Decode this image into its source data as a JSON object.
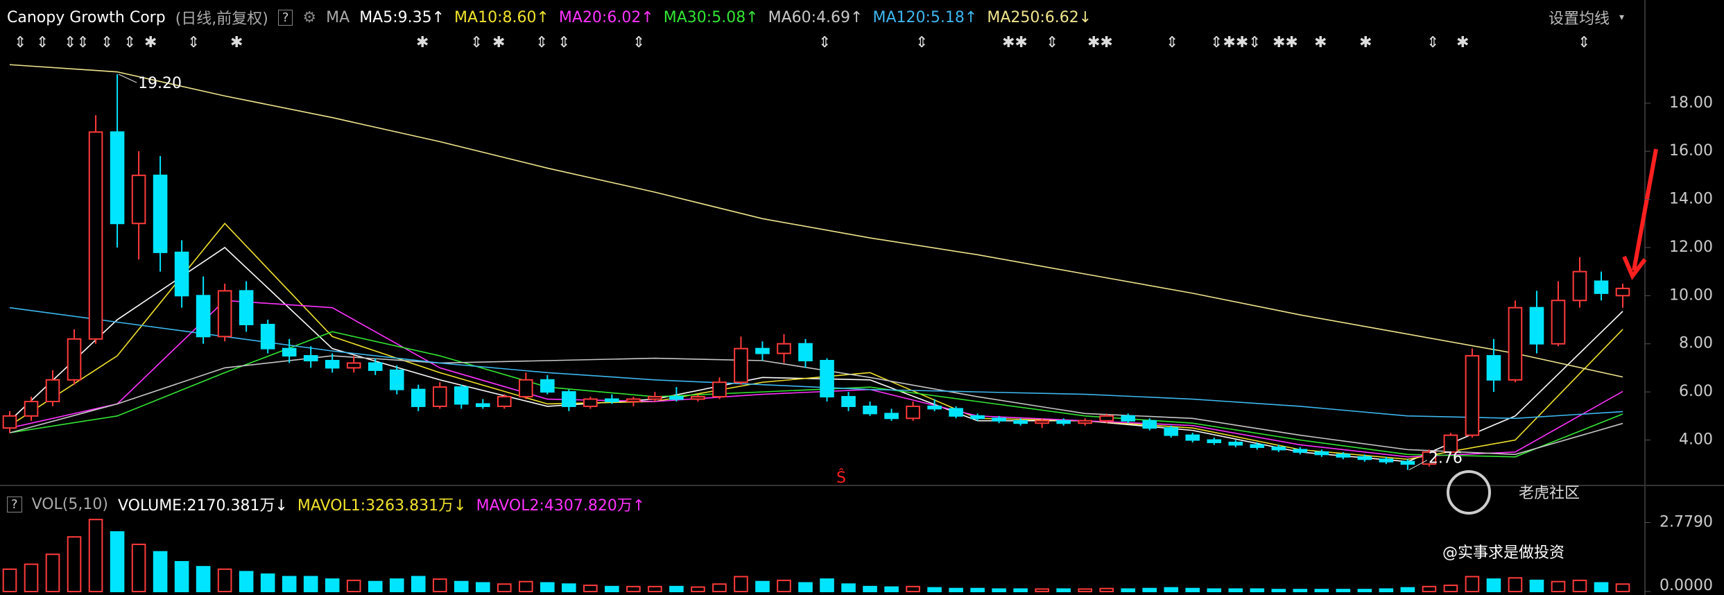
{
  "chart_data": {
    "type": "candlestick",
    "title": "Canopy Growth Corp",
    "subtitle": "(日线,前复权)",
    "help": "?",
    "ma_label": "MA",
    "settings_label": "设置均线",
    "up_color": "#ff3b3b",
    "down_color": "#00e5ff",
    "ylim": [
      2.17,
      19.78
    ],
    "yticks": [
      {
        "value": 4,
        "label": "4.00"
      },
      {
        "value": 6,
        "label": "6.00"
      },
      {
        "value": 8,
        "label": "8.00"
      },
      {
        "value": 10,
        "label": "10.00"
      },
      {
        "value": 12,
        "label": "12.00"
      },
      {
        "value": 14,
        "label": "14.00"
      },
      {
        "value": 16,
        "label": "16.00"
      },
      {
        "value": 18,
        "label": "18.00"
      }
    ],
    "grid": false,
    "candles": [
      [
        4.5,
        5.2,
        4.3,
        5.0
      ],
      [
        5.0,
        5.8,
        4.8,
        5.6
      ],
      [
        5.6,
        6.9,
        5.4,
        6.5
      ],
      [
        6.5,
        8.6,
        6.3,
        8.2
      ],
      [
        8.2,
        17.5,
        8.0,
        16.8
      ],
      [
        16.8,
        19.2,
        12.0,
        13.0
      ],
      [
        13.0,
        16.0,
        11.5,
        15.0
      ],
      [
        15.0,
        15.8,
        11.0,
        11.8
      ],
      [
        11.8,
        12.3,
        9.5,
        10.0
      ],
      [
        10.0,
        10.8,
        8.0,
        8.3
      ],
      [
        8.3,
        10.5,
        8.1,
        10.2
      ],
      [
        10.2,
        10.6,
        8.5,
        8.8
      ],
      [
        8.8,
        9.0,
        7.6,
        7.8
      ],
      [
        7.8,
        8.2,
        7.2,
        7.5
      ],
      [
        7.5,
        7.9,
        7.0,
        7.3
      ],
      [
        7.3,
        7.6,
        6.8,
        7.0
      ],
      [
        7.0,
        7.5,
        6.8,
        7.2
      ],
      [
        7.2,
        7.4,
        6.7,
        6.9
      ],
      [
        6.9,
        7.1,
        5.9,
        6.1
      ],
      [
        6.1,
        6.3,
        5.2,
        5.4
      ],
      [
        5.4,
        6.4,
        5.3,
        6.2
      ],
      [
        6.2,
        6.3,
        5.3,
        5.5
      ],
      [
        5.5,
        5.7,
        5.3,
        5.4
      ],
      [
        5.4,
        5.9,
        5.3,
        5.8
      ],
      [
        5.8,
        6.8,
        5.7,
        6.5
      ],
      [
        6.5,
        6.7,
        5.9,
        6.0
      ],
      [
        6.0,
        6.1,
        5.2,
        5.4
      ],
      [
        5.4,
        5.8,
        5.3,
        5.7
      ],
      [
        5.7,
        5.9,
        5.5,
        5.6
      ],
      [
        5.6,
        5.8,
        5.4,
        5.7
      ],
      [
        5.7,
        6.0,
        5.6,
        5.8
      ],
      [
        5.8,
        6.2,
        5.6,
        5.7
      ],
      [
        5.7,
        5.9,
        5.6,
        5.8
      ],
      [
        5.8,
        6.6,
        5.7,
        6.4
      ],
      [
        6.4,
        8.3,
        6.3,
        7.8
      ],
      [
        7.8,
        8.1,
        7.3,
        7.6
      ],
      [
        7.6,
        8.4,
        7.2,
        8.0
      ],
      [
        8.0,
        8.2,
        7.0,
        7.3
      ],
      [
        7.3,
        7.4,
        5.6,
        5.8
      ],
      [
        5.8,
        6.0,
        5.2,
        5.4
      ],
      [
        5.4,
        5.6,
        5.0,
        5.1
      ],
      [
        5.1,
        5.3,
        4.8,
        4.9
      ],
      [
        4.9,
        5.6,
        4.8,
        5.4
      ],
      [
        5.4,
        5.7,
        5.2,
        5.3
      ],
      [
        5.3,
        5.4,
        4.9,
        5.0
      ],
      [
        5.0,
        5.1,
        4.8,
        4.9
      ],
      [
        4.9,
        5.0,
        4.7,
        4.8
      ],
      [
        4.8,
        4.9,
        4.6,
        4.7
      ],
      [
        4.7,
        4.9,
        4.5,
        4.8
      ],
      [
        4.8,
        4.9,
        4.6,
        4.7
      ],
      [
        4.7,
        4.9,
        4.6,
        4.8
      ],
      [
        4.8,
        5.1,
        4.7,
        5.0
      ],
      [
        5.0,
        5.1,
        4.7,
        4.8
      ],
      [
        4.8,
        4.9,
        4.4,
        4.5
      ],
      [
        4.5,
        4.6,
        4.1,
        4.2
      ],
      [
        4.2,
        4.3,
        3.9,
        4.0
      ],
      [
        4.0,
        4.1,
        3.8,
        3.9
      ],
      [
        3.9,
        4.0,
        3.7,
        3.8
      ],
      [
        3.8,
        3.9,
        3.6,
        3.7
      ],
      [
        3.7,
        3.8,
        3.5,
        3.6
      ],
      [
        3.6,
        3.7,
        3.4,
        3.5
      ],
      [
        3.5,
        3.6,
        3.3,
        3.4
      ],
      [
        3.4,
        3.5,
        3.2,
        3.3
      ],
      [
        3.3,
        3.4,
        3.1,
        3.2
      ],
      [
        3.2,
        3.3,
        3.0,
        3.1
      ],
      [
        3.1,
        3.2,
        2.76,
        3.0
      ],
      [
        3.0,
        3.6,
        2.9,
        3.5
      ],
      [
        3.5,
        4.3,
        3.4,
        4.2
      ],
      [
        4.2,
        7.8,
        4.1,
        7.5
      ],
      [
        7.5,
        8.2,
        6.0,
        6.5
      ],
      [
        6.5,
        9.8,
        6.4,
        9.5
      ],
      [
        9.5,
        10.2,
        7.6,
        8.0
      ],
      [
        8.0,
        10.6,
        7.9,
        9.8
      ],
      [
        9.8,
        11.6,
        9.5,
        11.0
      ],
      [
        10.6,
        11.0,
        9.8,
        10.1
      ],
      [
        10.0,
        10.5,
        9.5,
        10.3
      ]
    ],
    "annotations": [
      {
        "value": 19.2,
        "label": "19.20"
      },
      {
        "value": 2.76,
        "label": "2.76"
      }
    ],
    "ma_x": [
      0,
      5,
      10,
      15,
      20,
      25,
      30,
      35,
      40,
      45,
      50,
      55,
      60,
      65,
      70,
      75
    ],
    "series": [
      {
        "name": "MA5:9.35↑",
        "color": "#ffffff",
        "values": [
          4.8,
          9.0,
          12.0,
          7.8,
          6.5,
          5.4,
          5.7,
          6.6,
          6.5,
          4.8,
          4.8,
          4.4,
          3.5,
          3.1,
          5.0,
          9.35
        ]
      },
      {
        "name": "MA10:8.60↑",
        "color": "#f2e32c",
        "values": [
          4.6,
          7.5,
          13.0,
          8.3,
          6.8,
          5.5,
          5.6,
          6.4,
          6.8,
          4.9,
          4.8,
          4.5,
          3.6,
          3.2,
          4.0,
          8.6
        ]
      },
      {
        "name": "MA20:6.02↑",
        "color": "#ff33ff",
        "values": [
          4.5,
          5.5,
          9.8,
          9.5,
          7.0,
          5.7,
          5.6,
          5.9,
          6.1,
          5.0,
          4.8,
          4.6,
          3.8,
          3.3,
          3.5,
          6.02
        ]
      },
      {
        "name": "MA30:5.08↑",
        "color": "#33e633",
        "values": [
          4.3,
          5.0,
          6.8,
          8.5,
          7.5,
          6.2,
          5.8,
          6.0,
          6.2,
          5.6,
          5.0,
          4.7,
          4.0,
          3.4,
          3.3,
          5.08
        ]
      },
      {
        "name": "MA60:4.69↑",
        "color": "#c8c8c8",
        "values": [
          4.3,
          5.5,
          7.0,
          7.5,
          7.2,
          7.3,
          7.4,
          7.3,
          6.6,
          5.8,
          5.1,
          4.9,
          4.2,
          3.6,
          3.4,
          4.69
        ]
      },
      {
        "name": "MA120:5.18↑",
        "color": "#3db8f0",
        "values": [
          9.5,
          8.9,
          8.3,
          7.7,
          7.2,
          6.8,
          6.5,
          6.3,
          6.1,
          6.0,
          5.9,
          5.7,
          5.4,
          5.0,
          4.9,
          5.18
        ]
      },
      {
        "name": "MA250:6.62↓",
        "color": "#f0e68c",
        "values": [
          19.6,
          19.3,
          18.3,
          17.4,
          16.4,
          15.3,
          14.3,
          13.2,
          12.4,
          11.7,
          10.9,
          10.1,
          9.2,
          8.4,
          7.6,
          6.62
        ]
      }
    ],
    "volume": {
      "help": "?",
      "title": "VOL(5,10)",
      "legend": [
        {
          "text": "VOLUME:2170.381万↓",
          "color": "#ffffff"
        },
        {
          "text": "MAVOL1:3263.831万↓",
          "color": "#f2e32c"
        },
        {
          "text": "MAVOL2:4307.820万↑",
          "color": "#ff33ff"
        }
      ],
      "ylim": [
        0,
        3.1
      ],
      "yticks": [
        {
          "value": 0,
          "label": "0.0000"
        },
        {
          "value": 2.779,
          "label": "2.7790"
        }
      ],
      "values": [
        0.9,
        1.1,
        1.5,
        2.2,
        2.9,
        2.4,
        1.9,
        1.6,
        1.2,
        1.0,
        0.9,
        0.8,
        0.7,
        0.6,
        0.6,
        0.5,
        0.45,
        0.4,
        0.5,
        0.6,
        0.5,
        0.4,
        0.35,
        0.3,
        0.4,
        0.35,
        0.3,
        0.25,
        0.2,
        0.2,
        0.2,
        0.2,
        0.18,
        0.3,
        0.6,
        0.4,
        0.45,
        0.35,
        0.5,
        0.3,
        0.2,
        0.18,
        0.2,
        0.15,
        0.12,
        0.12,
        0.1,
        0.1,
        0.1,
        0.1,
        0.1,
        0.12,
        0.1,
        0.12,
        0.15,
        0.12,
        0.1,
        0.1,
        0.1,
        0.08,
        0.08,
        0.08,
        0.08,
        0.08,
        0.1,
        0.15,
        0.2,
        0.25,
        0.6,
        0.5,
        0.55,
        0.45,
        0.4,
        0.45,
        0.35,
        0.3
      ]
    },
    "watermark": "老虎社区",
    "author": "@实事求是做投资"
  }
}
